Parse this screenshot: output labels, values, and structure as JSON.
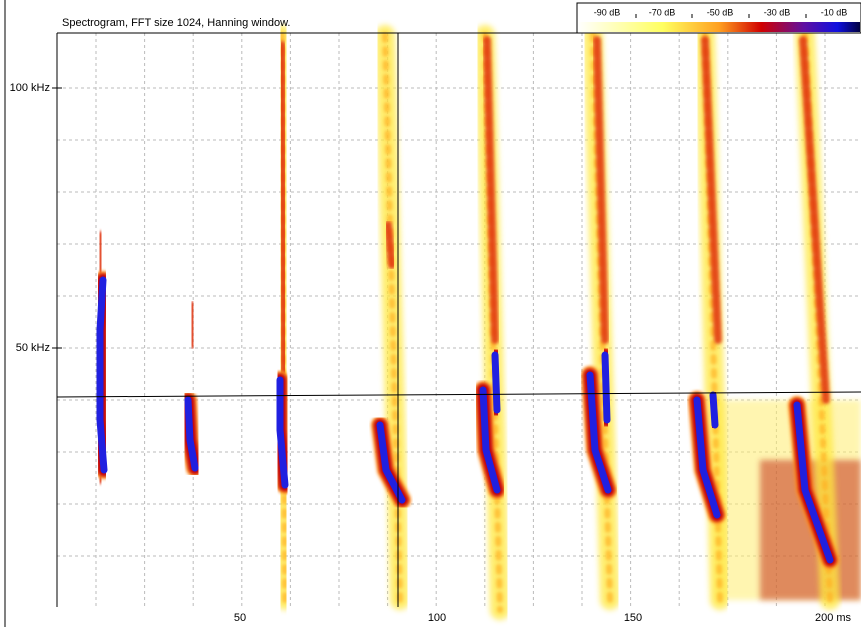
{
  "title": "Spectrogram, FFT size 1024, Hanning window.",
  "x_axis": {
    "ticks": [
      "50",
      "100",
      "150",
      "200 ms"
    ]
  },
  "y_axis": {
    "ticks": [
      "50 kHz",
      "100 kHz"
    ]
  },
  "colorbar": {
    "labels": [
      "-90 dB",
      "-70 dB",
      "-50 dB",
      "-30 dB",
      "-10 dB"
    ]
  }
}
